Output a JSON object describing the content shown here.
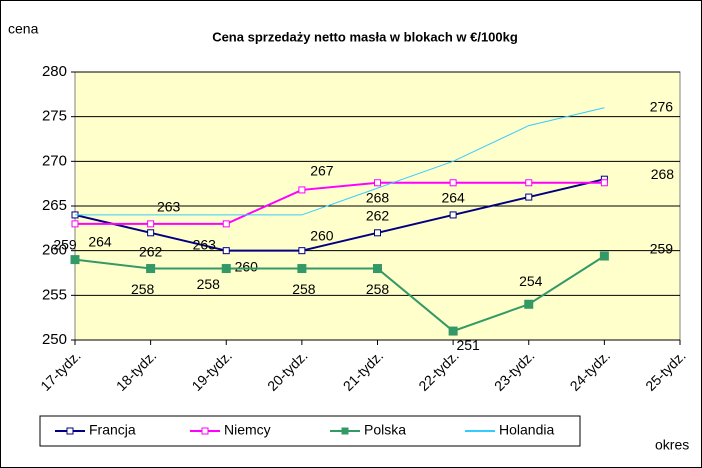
{
  "chart_data": {
    "type": "line",
    "title": "Cena sprzedaży netto masła w blokach w €/100kg",
    "y_label": "cena",
    "x_label": "okres",
    "categories": [
      "17-tydz.",
      "18-tydz.",
      "19-tydz.",
      "20-tydz.",
      "21-tydz.",
      "22-tydz.",
      "23-tydz.",
      "24-tydz.",
      "25-tydz."
    ],
    "ylim": [
      250,
      280
    ],
    "yticks": [
      250,
      255,
      260,
      265,
      270,
      275,
      280
    ],
    "grid": true,
    "series": [
      {
        "name": "Francja",
        "color": "#000080",
        "marker": "open-square",
        "values": [
          264,
          262,
          260,
          260,
          262,
          264,
          266,
          268,
          null
        ],
        "value_labels": [
          "264",
          "262",
          "260",
          "260",
          "262",
          "264",
          null,
          "268",
          null
        ]
      },
      {
        "name": "Niemcy",
        "color": "#ff00ff",
        "marker": "open-square",
        "values": [
          263,
          263,
          263,
          266.8,
          267.6,
          267.6,
          267.6,
          267.6,
          null
        ],
        "value_labels": [
          null,
          "263",
          "263",
          "267",
          "268",
          null,
          null,
          null,
          null
        ]
      },
      {
        "name": "Polska",
        "color": "#339966",
        "marker": "filled-square",
        "values": [
          259,
          258,
          258,
          258,
          258,
          251,
          254,
          259.4,
          null
        ],
        "value_labels": [
          "259",
          "258",
          "258",
          "258",
          "258",
          "251",
          "254",
          "259",
          null
        ]
      },
      {
        "name": "Holandia",
        "color": "#33ccff",
        "marker": "none",
        "values": [
          264,
          264,
          264,
          264,
          267,
          270,
          274,
          276,
          null
        ],
        "value_labels": [
          null,
          null,
          null,
          null,
          null,
          null,
          null,
          "276",
          null
        ]
      }
    ]
  }
}
